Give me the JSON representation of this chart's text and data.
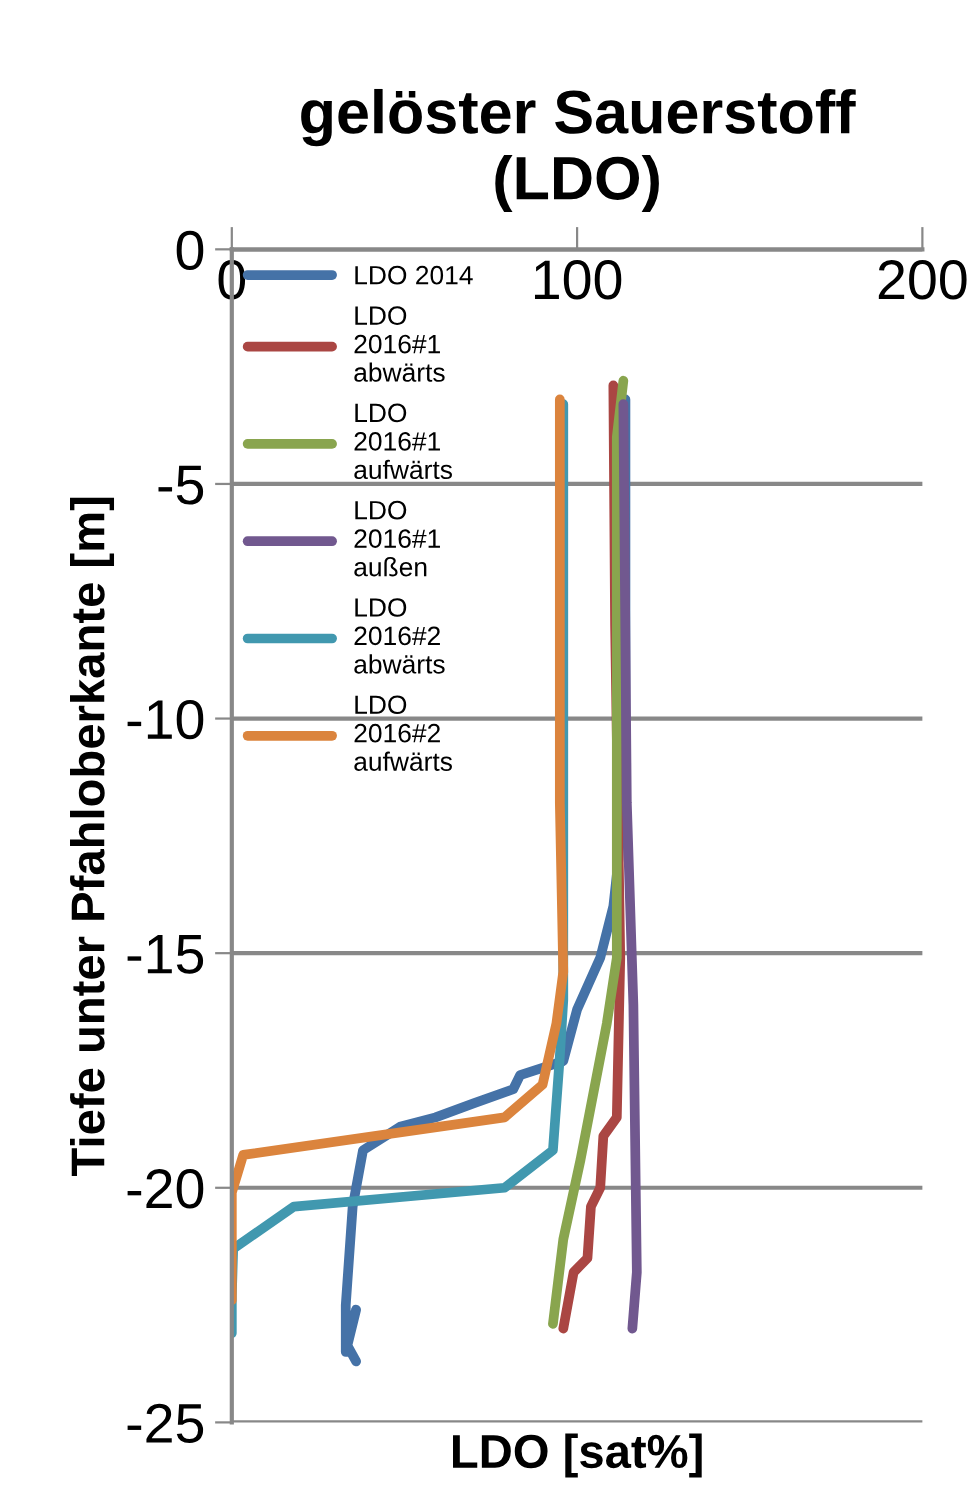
{
  "chart_data": {
    "type": "line",
    "title": "gelöster Sauerstoff\n(LDO)",
    "xlabel": "LDO [sat%]",
    "ylabel": "Tiefe unter Pfahloberkante [m]",
    "xlim": [
      0,
      200
    ],
    "xticks": [
      0,
      100,
      200
    ],
    "ylim": [
      -25,
      0
    ],
    "yticks": [
      -25,
      -20,
      -15,
      -10,
      -5,
      0
    ],
    "grid": "y",
    "legend": "top left",
    "series": [
      {
        "name": "LDO 2014",
        "color": "#4572a7",
        "x": [
          114,
          114,
          112,
          110.5,
          106.7,
          100,
          96,
          83.5,
          81.5,
          70,
          59,
          48.7,
          38,
          35,
          33,
          33,
          36,
          33,
          36
        ],
        "values": [
          -3.2,
          -10,
          -13,
          -14,
          -15.1,
          -16.2,
          -17.3,
          -17.6,
          -17.9,
          -18.2,
          -18.5,
          -18.7,
          -19.2,
          -20.4,
          -22.5,
          -23.5,
          -22.6,
          -23.3,
          -23.7
        ]
      },
      {
        "name": "LDO 2016#1 abwärts",
        "color": "#aa4643",
        "x": [
          110.5,
          111,
          112.5,
          111.5,
          107.6,
          106.7,
          104,
          103,
          99,
          96
        ],
        "values": [
          -2.9,
          -8,
          -15.1,
          -18.5,
          -18.9,
          -20,
          -20.4,
          -21.5,
          -21.8,
          -23.0
        ]
      },
      {
        "name": "LDO 2016#1 aufwärts",
        "color": "#89a54e",
        "x": [
          113.4,
          111.5,
          111.5,
          108.6,
          101,
          96,
          93
        ],
        "values": [
          -2.8,
          -4,
          -15.1,
          -16.5,
          -19.4,
          -21.1,
          -22.9
        ]
      },
      {
        "name": "LDO 2016#1 außen",
        "color": "#71588f",
        "x": [
          113.4,
          114.4,
          116.3,
          117.3,
          116
        ],
        "values": [
          -3.3,
          -11.8,
          -16.1,
          -21.8,
          -23.0
        ]
      },
      {
        "name": "LDO 2016#2 abwärts",
        "color": "#4198af",
        "x": [
          96,
          96,
          95,
          93,
          79,
          18,
          0.4,
          0,
          0
        ],
        "values": [
          -3.3,
          -16,
          -17.2,
          -19.2,
          -20.0,
          -20.4,
          -21.3,
          -22.3,
          -23.1
        ]
      },
      {
        "name": "LDO 2016#2 aufwärts",
        "color": "#db843d",
        "x": [
          95,
          95,
          96,
          94,
          90,
          79,
          3.3,
          0,
          0
        ],
        "values": [
          -3.2,
          -11.8,
          -15.4,
          -16.5,
          -17.8,
          -18.5,
          -19.3,
          -20.1,
          -22.4
        ]
      }
    ]
  }
}
